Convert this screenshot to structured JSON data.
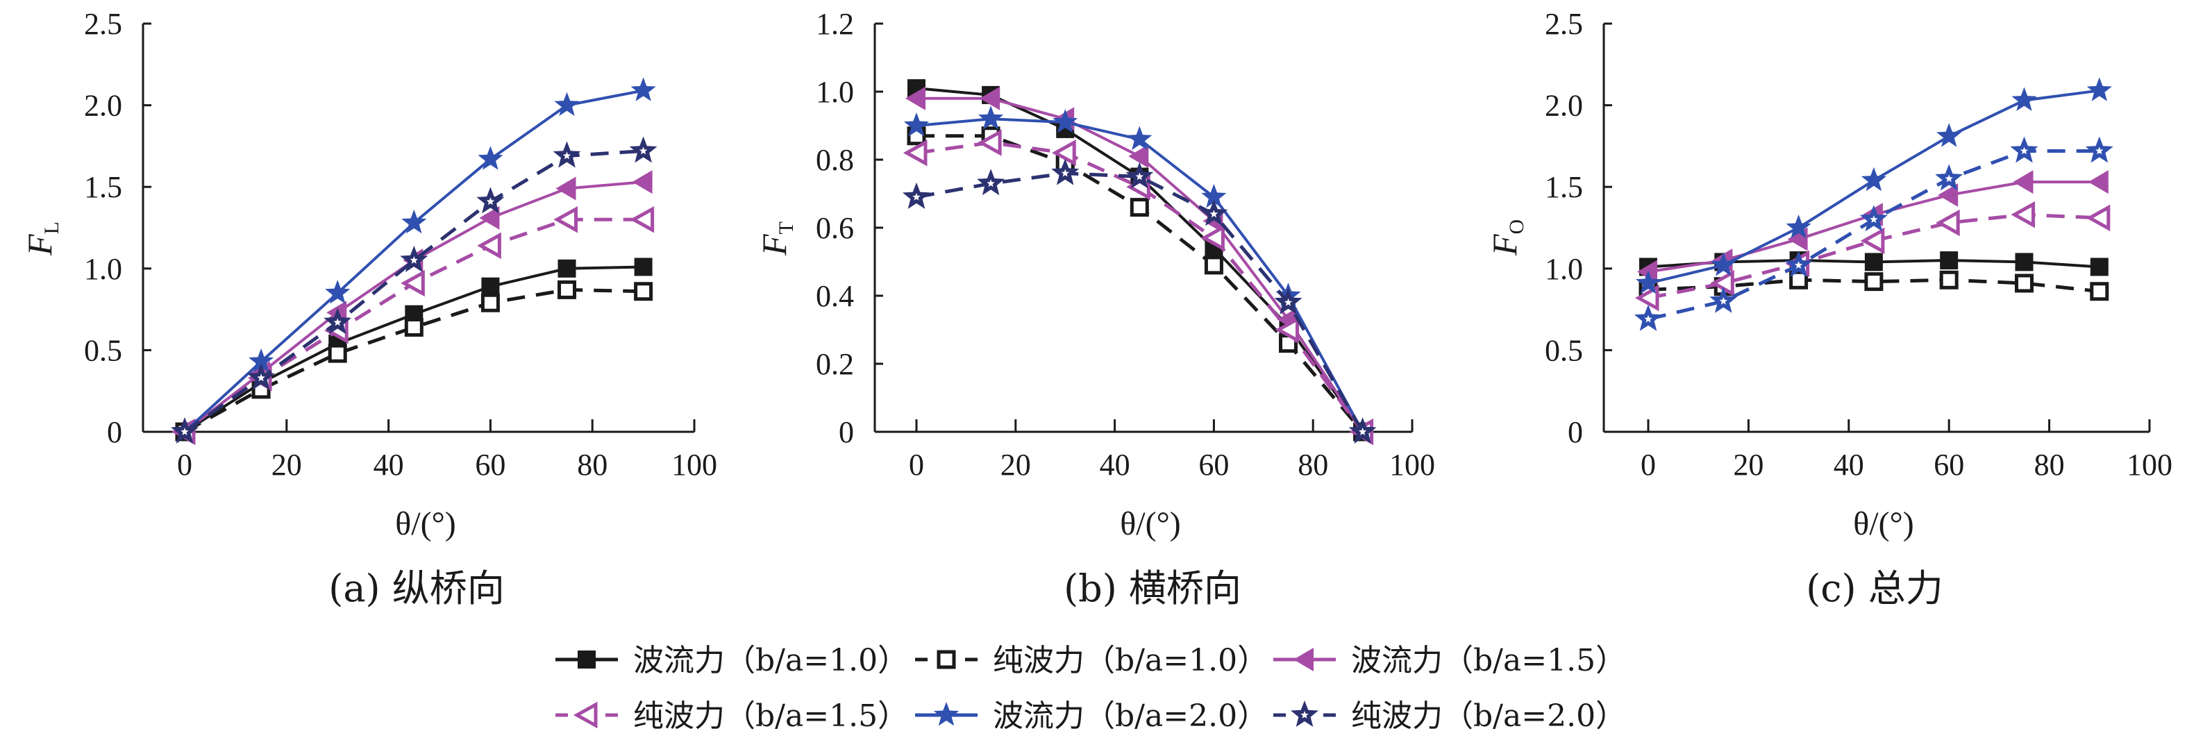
{
  "legend": [
    {
      "label": "波流力（b/a=1.0）",
      "name_prefix": "波流力（",
      "ratio": "b/a",
      "value": "=1.0）"
    },
    {
      "label": "纯波力（b/a=1.0）",
      "name_prefix": "纯波力（",
      "ratio": "b/a",
      "value": "=1.0）"
    },
    {
      "label": "波流力（b/a=1.5）",
      "name_prefix": "波流力（",
      "ratio": "b/a",
      "value": "=1.5）"
    },
    {
      "label": "纯波力（b/a=1.5）",
      "name_prefix": "纯波力（",
      "ratio": "b/a",
      "value": "=1.5）"
    },
    {
      "label": "波流力（b/a=2.0）",
      "name_prefix": "波流力（",
      "ratio": "b/a",
      "value": "=2.0）"
    },
    {
      "label": "纯波力（b/a=2.0）",
      "name_prefix": "纯波力（",
      "ratio": "b/a",
      "value": "=2.0）"
    }
  ],
  "chart_data": [
    {
      "type": "line",
      "subtitle": "(a) 纵桥向",
      "xlabel": "θ/(°)",
      "ylabel": "F",
      "ylabel_sub": "L",
      "x": [
        0,
        15,
        30,
        45,
        60,
        75,
        90
      ],
      "xlim": [
        0,
        100
      ],
      "xticks": [
        "0",
        "20",
        "40",
        "60",
        "80",
        "100"
      ],
      "ylim": [
        0,
        2.5
      ],
      "yticks": [
        "0",
        "0.5",
        "1.0",
        "1.5",
        "2.0",
        "2.5"
      ],
      "grid": false,
      "series": [
        {
          "name": "波流力（b/a=1.0）",
          "color": "#1a1a1a",
          "dash": false,
          "marker": "square-filled",
          "values": [
            0,
            0.3,
            0.54,
            0.72,
            0.89,
            1.0,
            1.01
          ]
        },
        {
          "name": "纯波力（b/a=1.0）",
          "color": "#1a1a1a",
          "dash": true,
          "marker": "square-open",
          "values": [
            0,
            0.26,
            0.48,
            0.64,
            0.79,
            0.87,
            0.86
          ]
        },
        {
          "name": "波流力（b/a=1.5）",
          "color": "#a64ca6",
          "dash": false,
          "marker": "triangle-left-filled",
          "values": [
            0,
            0.36,
            0.73,
            1.05,
            1.31,
            1.49,
            1.53
          ]
        },
        {
          "name": "纯波力（b/a=1.5）",
          "color": "#a64ca6",
          "dash": true,
          "marker": "triangle-left-open",
          "values": [
            0,
            0.33,
            0.62,
            0.91,
            1.14,
            1.3,
            1.3
          ]
        },
        {
          "name": "波流力（b/a=2.0）",
          "color": "#3050b0",
          "dash": false,
          "marker": "star-filled",
          "values": [
            0,
            0.43,
            0.85,
            1.28,
            1.67,
            2.0,
            2.09
          ]
        },
        {
          "name": "纯波力（b/a=2.0）",
          "color": "#2c3270",
          "dash": true,
          "marker": "star-hollow-center",
          "values": [
            0,
            0.33,
            0.67,
            1.05,
            1.41,
            1.69,
            1.72
          ]
        }
      ]
    },
    {
      "type": "line",
      "subtitle": "(b) 横桥向",
      "xlabel": "θ/(°)",
      "ylabel": "F",
      "ylabel_sub": "T",
      "x": [
        0,
        15,
        30,
        45,
        60,
        75,
        90
      ],
      "xlim": [
        0,
        100
      ],
      "xticks": [
        "0",
        "20",
        "40",
        "60",
        "80",
        "100"
      ],
      "ylim": [
        0,
        1.2
      ],
      "yticks": [
        "0",
        "0.2",
        "0.4",
        "0.6",
        "0.8",
        "1.0",
        "1.2"
      ],
      "grid": false,
      "series": [
        {
          "name": "波流力（b/a=1.0）",
          "color": "#1a1a1a",
          "dash": false,
          "marker": "square-filled",
          "values": [
            1.01,
            0.99,
            0.89,
            0.75,
            0.54,
            0.31,
            0
          ]
        },
        {
          "name": "纯波力（b/a=1.0）",
          "color": "#1a1a1a",
          "dash": true,
          "marker": "square-open",
          "values": [
            0.87,
            0.87,
            0.79,
            0.66,
            0.49,
            0.26,
            0
          ]
        },
        {
          "name": "波流力（b/a=1.5）",
          "color": "#a64ca6",
          "dash": false,
          "marker": "triangle-left-filled",
          "values": [
            0.98,
            0.98,
            0.92,
            0.81,
            0.62,
            0.33,
            0
          ]
        },
        {
          "name": "纯波力（b/a=1.5）",
          "color": "#a64ca6",
          "dash": true,
          "marker": "triangle-left-open",
          "values": [
            0.82,
            0.85,
            0.82,
            0.72,
            0.57,
            0.3,
            0
          ]
        },
        {
          "name": "波流力（b/a=2.0）",
          "color": "#3050b0",
          "dash": false,
          "marker": "star-filled",
          "values": [
            0.9,
            0.92,
            0.91,
            0.86,
            0.69,
            0.4,
            0
          ]
        },
        {
          "name": "纯波力（b/a=2.0）",
          "color": "#2c3270",
          "dash": true,
          "marker": "star-hollow-center",
          "values": [
            0.69,
            0.73,
            0.76,
            0.75,
            0.64,
            0.38,
            0
          ]
        }
      ]
    },
    {
      "type": "line",
      "subtitle": "(c) 总力",
      "xlabel": "θ/(°)",
      "ylabel": "F",
      "ylabel_sub": "O",
      "x": [
        0,
        15,
        30,
        45,
        60,
        75,
        90
      ],
      "xlim": [
        0,
        100
      ],
      "xticks": [
        "0",
        "20",
        "40",
        "60",
        "80",
        "100"
      ],
      "ylim": [
        0,
        2.5
      ],
      "yticks": [
        "0",
        "0.5",
        "1.0",
        "1.5",
        "2.0",
        "2.5"
      ],
      "grid": false,
      "series": [
        {
          "name": "波流力（b/a=1.0）",
          "color": "#1a1a1a",
          "dash": false,
          "marker": "square-filled",
          "values": [
            1.01,
            1.04,
            1.05,
            1.04,
            1.05,
            1.04,
            1.01
          ]
        },
        {
          "name": "纯波力（b/a=1.0）",
          "color": "#1a1a1a",
          "dash": true,
          "marker": "square-open",
          "values": [
            0.87,
            0.89,
            0.93,
            0.92,
            0.93,
            0.91,
            0.86
          ]
        },
        {
          "name": "波流力（b/a=1.5）",
          "color": "#a64ca6",
          "dash": false,
          "marker": "triangle-left-filled",
          "values": [
            0.98,
            1.05,
            1.18,
            1.33,
            1.45,
            1.53,
            1.53
          ]
        },
        {
          "name": "纯波力（b/a=1.5）",
          "color": "#a64ca6",
          "dash": true,
          "marker": "triangle-left-open",
          "values": [
            0.82,
            0.91,
            1.03,
            1.17,
            1.28,
            1.33,
            1.31
          ]
        },
        {
          "name": "波流力（b/a=2.0）",
          "color": "#3050b0",
          "dash": false,
          "marker": "star-filled",
          "values": [
            0.91,
            1.02,
            1.25,
            1.54,
            1.81,
            2.03,
            2.09
          ]
        },
        {
          "name": "纯波力（b/a=2.0）",
          "color": "#3050b0",
          "dash": true,
          "marker": "star-hollow-center",
          "values": [
            0.69,
            0.8,
            1.02,
            1.3,
            1.55,
            1.72,
            1.72
          ]
        }
      ]
    }
  ]
}
